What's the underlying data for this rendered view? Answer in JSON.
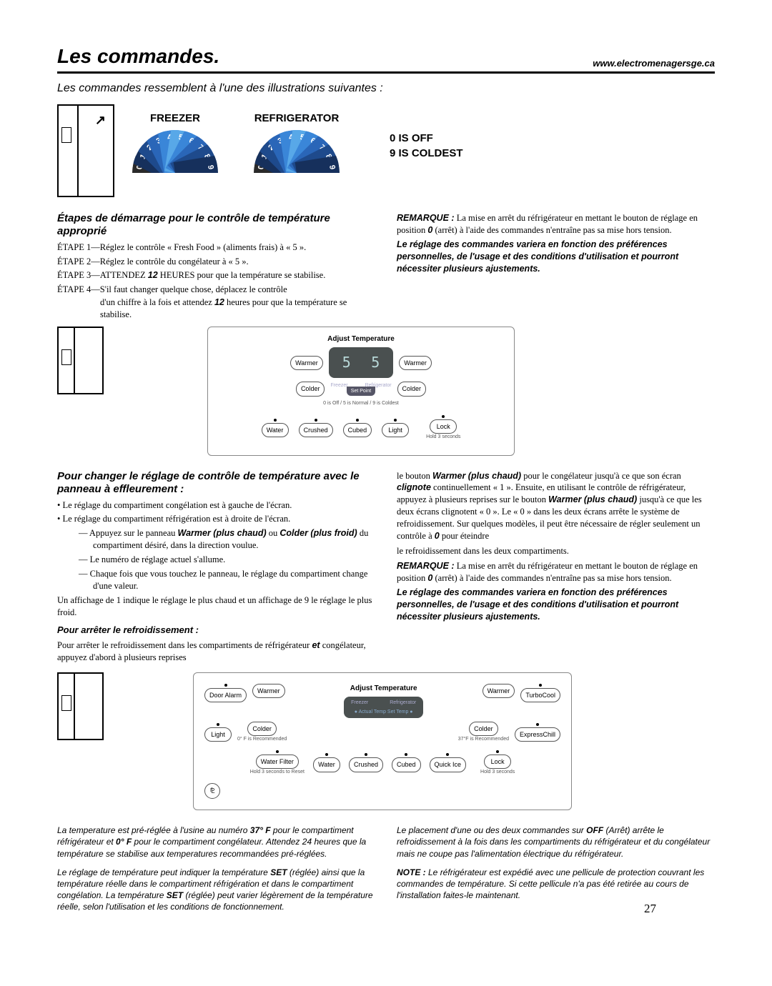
{
  "header": {
    "title": "Les commandes.",
    "url": "www.electromenagersge.ca"
  },
  "intro": "Les commandes ressemblent à l'une des illustrations suivantes :",
  "dials": {
    "freezer": "FREEZER",
    "refrigerator": "REFRIGERATOR",
    "numbers": [
      "0",
      "1",
      "2",
      "3",
      "4",
      "5",
      "6",
      "7",
      "8",
      "9"
    ],
    "off_line1": "0 IS OFF",
    "off_line2": "9 IS COLDEST",
    "seg_colors": [
      "#2a2a2a",
      "#16305c",
      "#1e4a8c",
      "#2a66b8",
      "#3a86d8",
      "#58a8e8",
      "#3a86d8",
      "#2a66b8",
      "#1e4a8c",
      "#16305c"
    ]
  },
  "steps": {
    "title": "Étapes de démarrage pour le contrôle de température approprié",
    "s1": "ÉTAPE 1—Réglez le contrôle « Fresh Food » (aliments frais) à « 5 ».",
    "s2": "ÉTAPE 2—Réglez le contrôle du congélateur à « 5 ».",
    "s3a": "ÉTAPE 3—ATTENDEZ ",
    "s3b": "12",
    "s3c": " HEURES pour que la température se stabilise.",
    "s4a": "ÉTAPE 4—S'il faut changer quelque chose, déplacez le contrôle",
    "s4b": "d'un chiffre à la fois et attendez ",
    "s4c": "12",
    "s4d": " heures pour que la température se stabilise."
  },
  "note1": {
    "prefix": "REMARQUE :",
    "body": " La mise en arrêt du réfrigérateur en mettant le bouton de réglage en position ",
    "zero": "0",
    "tail": " (arrêt) à l'aide des commandes n'entraîne pas sa mise hors tension.",
    "bold": "Le réglage des commandes variera en fonction des préférences personnelles, de l'usage et des conditions d'utilisation et pourront nécessiter plusieurs ajustements."
  },
  "panel1": {
    "title": "Adjust Temperature",
    "warmer": "Warmer",
    "colder": "Colder",
    "freezer": "Freezer",
    "refrigerator": "Refrigerator",
    "setpoint": "Set Point",
    "subtext": "0 is Off / 5 is Normal / 9 is Coldest",
    "digit": "5",
    "water": "Water",
    "crushed": "Crushed",
    "cubed": "Cubed",
    "light": "Light",
    "lock": "Lock",
    "hold": "Hold 3 seconds"
  },
  "touch": {
    "title": "Pour changer le réglage de contrôle de température avec le panneau à effleurement :",
    "b1": "• Le réglage du compartiment congélation est à gauche de l'écran.",
    "b2": "• Le réglage du compartiment réfrigération est à droite de l'écran.",
    "d1a": "— Appuyez sur le panneau ",
    "d1b": "Warmer (plus chaud)",
    "d1c": " ou ",
    "d1d": "Colder (plus froid)",
    "d1e": " du compartiment désiré, dans la direction voulue.",
    "d2": "— Le numéro de réglage actuel s'allume.",
    "d3": "— Chaque fois que vous touchez le panneau, le réglage du compartiment change d'une valeur.",
    "p1": "Un affichage de 1 indique le réglage le plus chaud et un affichage de 9 le réglage le plus froid.",
    "stop_title": "Pour arrêter le refroidissement :",
    "stop_p_a": "Pour arrêter le refroidissement dans les compartiments de réfrigérateur ",
    "stop_et": "et",
    "stop_p_b": " congélateur, appuyez d'abord à plusieurs reprises"
  },
  "touch_right": {
    "p1a": "le bouton ",
    "p1b": "Warmer (plus chaud)",
    "p1c": " pour le congélateur jusqu'à ce que son écran ",
    "p1d": "clignote",
    "p1e": " continuellement « 1 ». Ensuite, en utilisant le contrôle de réfrigérateur, appuyez à plusieurs reprises sur le bouton ",
    "p1f": "Warmer (plus chaud)",
    "p1g": " jusqu'à ce que les deux écrans clignotent « 0 ». Le « 0 » dans les deux écrans arrête le système de refroidissement. Sur quelques modèles, il peut être nécessaire de régler seulement un contrôle à ",
    "p1h": "0",
    "p1i": " pour éteindre",
    "p2": "le refroidissement dans les deux compartiments.",
    "remark_prefix": "REMARQUE :",
    "remark_body": " La mise en arrêt du réfrigérateur en mettant le bouton de réglage en position ",
    "remark_zero": "0",
    "remark_tail": " (arrêt) à l'aide des commandes n'entraîne pas sa mise hors tension.",
    "bold": "Le réglage des commandes variera en fonction des préférences personnelles, de l'usage et des conditions d'utilisation et pourront nécessiter plusieurs ajustements."
  },
  "panel2": {
    "title": "Adjust Temperature",
    "door_alarm": "Door Alarm",
    "warmer": "Warmer",
    "colder": "Colder",
    "turbo": "TurboCool",
    "express": "ExpressChill",
    "light": "Light",
    "water_filter": "Water Filter",
    "water": "Water",
    "crushed": "Crushed",
    "cubed": "Cubed",
    "quick_ice": "Quick Ice",
    "lock": "Lock",
    "rec0": "0° F is Recommended",
    "rec37": "37°F is Recommended",
    "freezer": "Freezer",
    "refrigerator": "Refrigerator",
    "actual": "● Actual Temp   Set Temp ●",
    "hold_reset": "Hold 3 seconds to Reset",
    "hold": "Hold 3 seconds"
  },
  "bottom_left": {
    "p1a": "La temperature est pré-réglée à l'usine au numéro ",
    "p1b": "37° F",
    "p1c": " pour le compartiment réfrigérateur et ",
    "p1d": "0° F",
    "p1e": " pour le compartiment congélateur. Attendez 24 heures que la température se stabilise aux temperatures recommandées pré-réglées.",
    "p2a": "Le réglage de température peut indiquer la température ",
    "p2b": "SET",
    "p2c": " (réglée) ainsi que la température réelle dans le compartiment réfrigération et dans le compartiment congélation. La température ",
    "p2d": "SET",
    "p2e": " (réglée) peut varier légèrement de la température réelle, selon l'utilisation et les conditions de fonctionnement."
  },
  "bottom_right": {
    "p1a": "Le placement d'une ou des deux commandes sur ",
    "p1b": "OFF",
    "p1c": " (Arrêt) arrête le refroidissement à la fois dans les compartiments du réfrigérateur et du congélateur mais ne coupe pas l'alimentation électrique du réfrigérateur.",
    "p2a": "NOTE :",
    "p2b": " Le réfrigérateur est expédié avec une pellicule de protection couvrant les commandes de température. Si cette pellicule n'a pas été retirée au cours de l'installation faites-le maintenant."
  },
  "page_number": "27"
}
